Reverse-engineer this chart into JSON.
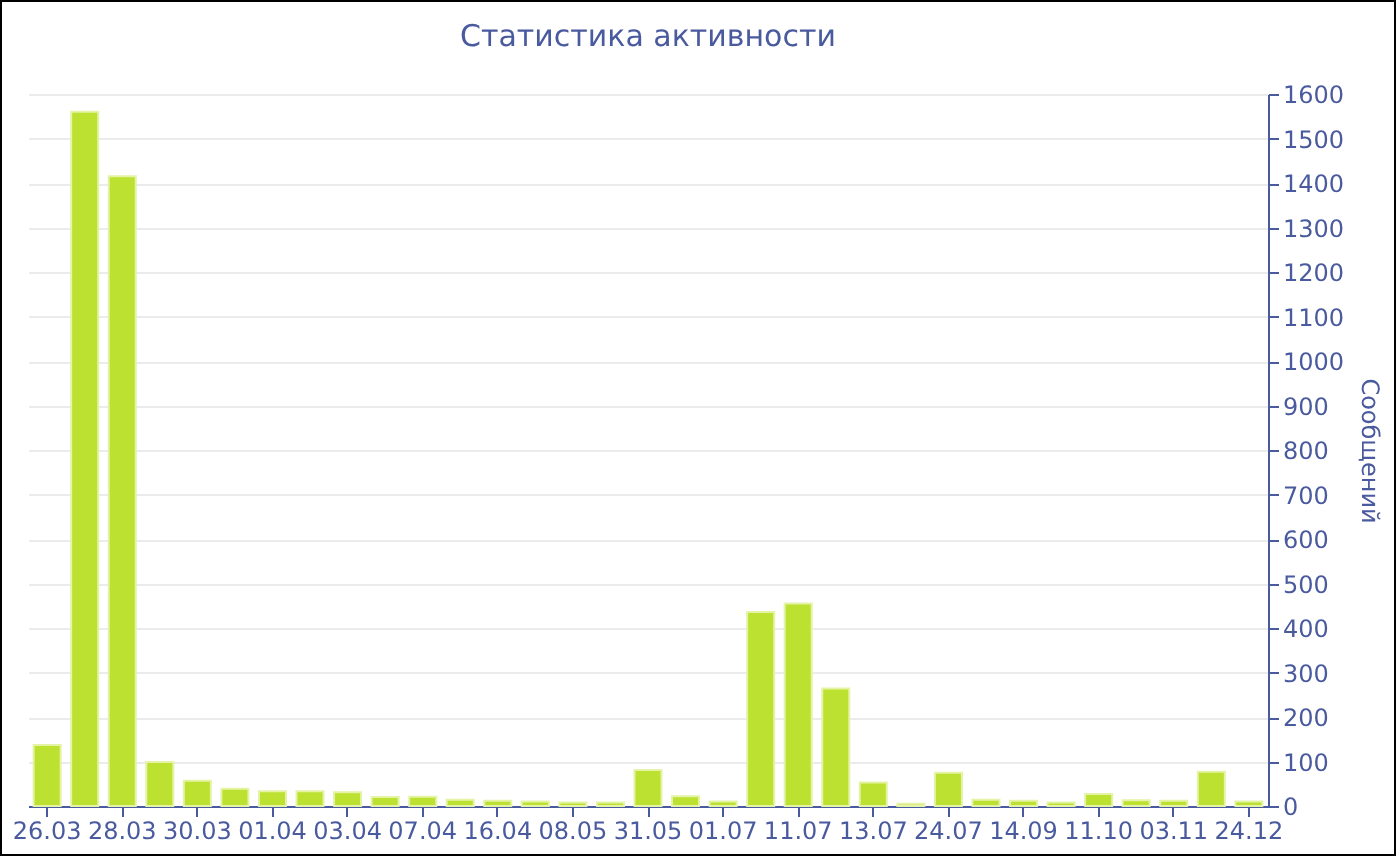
{
  "chart_data": {
    "type": "bar",
    "title": "Статистика активности",
    "ylabel": "Сообщений",
    "categories": [
      "26.03",
      null,
      "28.03",
      null,
      "30.03",
      null,
      "01.04",
      null,
      "03.04",
      null,
      "07.04",
      null,
      "16.04",
      null,
      "08.05",
      null,
      "31.05",
      null,
      "01.07",
      null,
      "11.07",
      null,
      "13.07",
      null,
      "24.07",
      null,
      "14.09",
      null,
      "11.10",
      null,
      "03.11",
      null,
      "24.12"
    ],
    "values": [
      137,
      1560,
      1415,
      99,
      57,
      39,
      33,
      33,
      31,
      20,
      21,
      14,
      12,
      10,
      8,
      8,
      81,
      22,
      10,
      436,
      455,
      264,
      53,
      5,
      75,
      14,
      12,
      8,
      27,
      13,
      12,
      77,
      10
    ],
    "color": "#bde130",
    "ylim": [
      0,
      1600
    ],
    "yticks": [
      0,
      100,
      200,
      300,
      400,
      500,
      600,
      700,
      800,
      900,
      1000,
      1100,
      1200,
      1300,
      1400,
      1500,
      1600
    ],
    "grid": "y"
  }
}
